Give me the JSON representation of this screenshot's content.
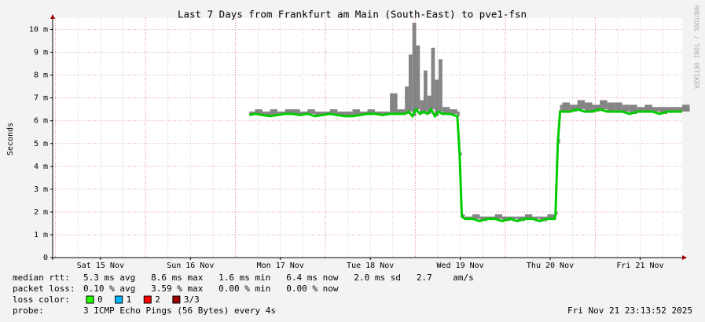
{
  "chart_data": {
    "type": "smokeping",
    "title": "Last 7 Days from Frankfurt am Main (South-East) to pve1-fsn",
    "y_label": "Seconds",
    "side_text": "RRDTOOL / TOBI OETIKER",
    "xlim": [
      0,
      168
    ],
    "ylim": [
      0,
      0.0105
    ],
    "xticks": [
      {
        "value": 12.77,
        "label": "Sat 15 Nov"
      },
      {
        "value": 36.77,
        "label": "Sun 16 Nov"
      },
      {
        "value": 60.77,
        "label": "Mon 17 Nov"
      },
      {
        "value": 84.77,
        "label": "Tue 18 Nov"
      },
      {
        "value": 108.77,
        "label": "Wed 19 Nov"
      },
      {
        "value": 132.77,
        "label": "Thu 20 Nov"
      },
      {
        "value": 156.77,
        "label": "Fri 21 Nov"
      }
    ],
    "yticks": [
      0,
      {
        "value": 0.001,
        "label": "1 m"
      },
      {
        "value": 0.002,
        "label": "2 m"
      },
      {
        "value": 0.003,
        "label": "3 m"
      },
      {
        "value": 0.004,
        "label": "4 m"
      },
      {
        "value": 0.005,
        "label": "5 m"
      },
      {
        "value": 0.006,
        "label": "6 m"
      },
      {
        "value": 0.007,
        "label": "7 m"
      },
      {
        "value": 0.008,
        "label": "8 m"
      },
      {
        "value": 0.009,
        "label": "9 m"
      },
      {
        "value": 0.01,
        "label": "10 m"
      }
    ],
    "grid": true,
    "x": [
      52.5,
      54,
      56,
      58,
      60,
      62,
      64,
      66,
      68,
      70,
      72,
      74,
      76,
      78,
      80,
      82,
      84,
      86,
      88,
      90,
      92,
      93,
      94,
      95,
      96,
      97,
      98,
      99,
      100,
      101,
      102,
      103,
      104,
      106,
      108,
      108.6,
      109.2,
      110,
      112,
      114,
      116,
      118,
      120,
      122,
      124,
      126,
      128,
      130,
      132,
      134,
      134.2,
      134.8,
      135.4,
      136,
      138,
      140,
      142,
      144,
      146,
      148,
      150,
      152,
      154,
      156,
      158,
      160,
      162,
      164,
      166,
      168
    ],
    "series": [
      {
        "color": "#00cc00",
        "values": [
          0.00625,
          0.0063,
          0.00625,
          0.0062,
          0.00625,
          0.0063,
          0.0063,
          0.00625,
          0.0063,
          0.0062,
          0.00625,
          0.0063,
          0.00625,
          0.0062,
          0.0062,
          0.00625,
          0.0063,
          0.0063,
          0.00625,
          0.0063,
          0.0063,
          0.0063,
          0.0063,
          0.0064,
          0.0062,
          0.0065,
          0.0063,
          0.0064,
          0.0063,
          0.0065,
          0.0062,
          0.0064,
          0.0063,
          0.0063,
          0.0062,
          0.0045,
          0.0018,
          0.0017,
          0.0017,
          0.0016,
          0.0017,
          0.0017,
          0.0016,
          0.0017,
          0.0016,
          0.0017,
          0.0017,
          0.0016,
          0.0017,
          0.0017,
          0.0019,
          0.005,
          0.0064,
          0.0064,
          0.0064,
          0.0065,
          0.0064,
          0.0064,
          0.0065,
          0.0064,
          0.0064,
          0.0064,
          0.0063,
          0.0064,
          0.0064,
          0.0064,
          0.0063,
          0.0064,
          0.0064,
          0.0064
        ]
      },
      {
        "color": "#707070",
        "values": [
          0.0064,
          0.0065,
          0.0064,
          0.0065,
          0.0064,
          0.0065,
          0.0065,
          0.0064,
          0.0065,
          0.0064,
          0.0064,
          0.0065,
          0.0064,
          0.0064,
          0.0065,
          0.0064,
          0.0065,
          0.0064,
          0.0064,
          0.0072,
          0.0065,
          0.0065,
          0.0075,
          0.0089,
          0.0103,
          0.0093,
          0.0069,
          0.0082,
          0.0071,
          0.0092,
          0.0078,
          0.0087,
          0.0066,
          0.0065,
          0.0064,
          0.0046,
          0.0019,
          0.0018,
          0.0019,
          0.0018,
          0.0018,
          0.0019,
          0.0018,
          0.0018,
          0.0018,
          0.0019,
          0.0018,
          0.0018,
          0.0019,
          0.0018,
          0.002,
          0.0052,
          0.0067,
          0.0068,
          0.0067,
          0.0069,
          0.0068,
          0.0067,
          0.0069,
          0.0068,
          0.0068,
          0.0067,
          0.0067,
          0.0066,
          0.0067,
          0.0066,
          0.0066,
          0.0066,
          0.0066,
          0.0067
        ]
      }
    ],
    "stats": [
      {
        "label": "median rtt:",
        "text": "5.3 ms avg   8.6 ms max   1.6 ms min   6.4 ms now   2.0 ms sd   2.7    am/s"
      },
      {
        "label": "packet loss:",
        "text": "0.10 % avg   3.59 % max   0.00 % min   0.00 % now"
      }
    ],
    "loss_color": {
      "label": "loss color:",
      "items": [
        {
          "name": "0",
          "color": "#26ff00"
        },
        {
          "name": "1",
          "color": "#00b8ff"
        },
        {
          "name": "2",
          "color": "#ff0000"
        },
        {
          "name": "3/3",
          "color": "#a10000"
        }
      ]
    },
    "probe": {
      "label": "probe:",
      "text": "3 ICMP Echo Pings (56 Bytes) every 4s"
    },
    "timestamp": "Fri Nov 21 23:13:52 2025"
  }
}
